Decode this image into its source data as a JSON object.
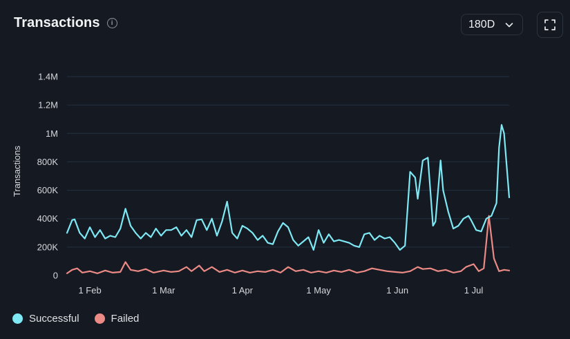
{
  "header": {
    "title": "Transactions",
    "info_icon": "info-icon",
    "range_label": "180D",
    "range_icon": "chevron-down-icon",
    "expand_icon": "expand-icon"
  },
  "colors": {
    "background": "#151a22",
    "grid": "#243040",
    "successful": "#7ee8f4",
    "failed": "#ec8a86"
  },
  "chart_data": {
    "type": "line",
    "title": "",
    "xlabel": "",
    "ylabel": "Transactions",
    "ylim": [
      0,
      1400000
    ],
    "yticks": [
      0,
      200000,
      400000,
      600000,
      800000,
      1000000,
      1200000,
      1400000
    ],
    "ytick_labels": [
      "0",
      "200K",
      "400K",
      "600K",
      "800K",
      "1M",
      "1.2M",
      "1.4M"
    ],
    "xrange": [
      "2024-01-23",
      "2024-07-15"
    ],
    "xticks": [
      "2024-02-01",
      "2024-03-01",
      "2024-04-01",
      "2024-05-01",
      "2024-06-01",
      "2024-07-01"
    ],
    "xtick_labels": [
      "1 Feb",
      "1 Mar",
      "1 Apr",
      "1 May",
      "1 Jun",
      "1 Jul"
    ],
    "grid": true,
    "legend_position": "bottom-left",
    "series": [
      {
        "name": "Successful",
        "color": "#7ee8f4",
        "points": [
          [
            "2024-01-23",
            300000
          ],
          [
            "2024-01-25",
            390000
          ],
          [
            "2024-01-26",
            395000
          ],
          [
            "2024-01-28",
            300000
          ],
          [
            "2024-01-30",
            260000
          ],
          [
            "2024-02-01",
            340000
          ],
          [
            "2024-02-03",
            270000
          ],
          [
            "2024-02-05",
            320000
          ],
          [
            "2024-02-07",
            260000
          ],
          [
            "2024-02-09",
            280000
          ],
          [
            "2024-02-11",
            270000
          ],
          [
            "2024-02-13",
            330000
          ],
          [
            "2024-02-15",
            470000
          ],
          [
            "2024-02-17",
            350000
          ],
          [
            "2024-02-19",
            300000
          ],
          [
            "2024-02-21",
            260000
          ],
          [
            "2024-02-23",
            300000
          ],
          [
            "2024-02-25",
            270000
          ],
          [
            "2024-02-27",
            330000
          ],
          [
            "2024-02-29",
            280000
          ],
          [
            "2024-03-02",
            320000
          ],
          [
            "2024-03-04",
            320000
          ],
          [
            "2024-03-06",
            340000
          ],
          [
            "2024-03-08",
            280000
          ],
          [
            "2024-03-10",
            320000
          ],
          [
            "2024-03-12",
            270000
          ],
          [
            "2024-03-14",
            390000
          ],
          [
            "2024-03-16",
            395000
          ],
          [
            "2024-03-18",
            320000
          ],
          [
            "2024-03-20",
            400000
          ],
          [
            "2024-03-22",
            280000
          ],
          [
            "2024-03-24",
            380000
          ],
          [
            "2024-03-26",
            520000
          ],
          [
            "2024-03-28",
            300000
          ],
          [
            "2024-03-30",
            260000
          ],
          [
            "2024-04-01",
            350000
          ],
          [
            "2024-04-03",
            330000
          ],
          [
            "2024-04-05",
            300000
          ],
          [
            "2024-04-07",
            250000
          ],
          [
            "2024-04-09",
            280000
          ],
          [
            "2024-04-11",
            230000
          ],
          [
            "2024-04-13",
            220000
          ],
          [
            "2024-04-15",
            310000
          ],
          [
            "2024-04-17",
            370000
          ],
          [
            "2024-04-19",
            340000
          ],
          [
            "2024-04-21",
            250000
          ],
          [
            "2024-04-23",
            210000
          ],
          [
            "2024-04-25",
            240000
          ],
          [
            "2024-04-27",
            270000
          ],
          [
            "2024-04-29",
            180000
          ],
          [
            "2024-05-01",
            320000
          ],
          [
            "2024-05-03",
            230000
          ],
          [
            "2024-05-05",
            290000
          ],
          [
            "2024-05-07",
            240000
          ],
          [
            "2024-05-09",
            250000
          ],
          [
            "2024-05-11",
            240000
          ],
          [
            "2024-05-13",
            230000
          ],
          [
            "2024-05-15",
            210000
          ],
          [
            "2024-05-17",
            200000
          ],
          [
            "2024-05-19",
            290000
          ],
          [
            "2024-05-21",
            300000
          ],
          [
            "2024-05-23",
            250000
          ],
          [
            "2024-05-25",
            280000
          ],
          [
            "2024-05-27",
            260000
          ],
          [
            "2024-05-29",
            270000
          ],
          [
            "2024-05-31",
            230000
          ],
          [
            "2024-06-02",
            180000
          ],
          [
            "2024-06-04",
            210000
          ],
          [
            "2024-06-06",
            730000
          ],
          [
            "2024-06-08",
            690000
          ],
          [
            "2024-06-09",
            540000
          ],
          [
            "2024-06-11",
            810000
          ],
          [
            "2024-06-13",
            830000
          ],
          [
            "2024-06-15",
            350000
          ],
          [
            "2024-06-16",
            380000
          ],
          [
            "2024-06-18",
            810000
          ],
          [
            "2024-06-19",
            600000
          ],
          [
            "2024-06-21",
            450000
          ],
          [
            "2024-06-23",
            330000
          ],
          [
            "2024-06-25",
            350000
          ],
          [
            "2024-06-27",
            400000
          ],
          [
            "2024-06-29",
            420000
          ],
          [
            "2024-06-30",
            390000
          ],
          [
            "2024-07-02",
            320000
          ],
          [
            "2024-07-04",
            310000
          ],
          [
            "2024-07-06",
            400000
          ],
          [
            "2024-07-08",
            420000
          ],
          [
            "2024-07-10",
            510000
          ],
          [
            "2024-07-11",
            900000
          ],
          [
            "2024-07-12",
            1060000
          ],
          [
            "2024-07-13",
            1000000
          ],
          [
            "2024-07-15",
            550000
          ]
        ]
      },
      {
        "name": "Failed",
        "color": "#ec8a86",
        "points": [
          [
            "2024-01-23",
            15000
          ],
          [
            "2024-01-25",
            40000
          ],
          [
            "2024-01-27",
            50000
          ],
          [
            "2024-01-29",
            20000
          ],
          [
            "2024-02-01",
            30000
          ],
          [
            "2024-02-04",
            15000
          ],
          [
            "2024-02-07",
            35000
          ],
          [
            "2024-02-10",
            20000
          ],
          [
            "2024-02-13",
            25000
          ],
          [
            "2024-02-15",
            95000
          ],
          [
            "2024-02-17",
            40000
          ],
          [
            "2024-02-20",
            30000
          ],
          [
            "2024-02-23",
            45000
          ],
          [
            "2024-02-26",
            20000
          ],
          [
            "2024-03-01",
            35000
          ],
          [
            "2024-03-04",
            25000
          ],
          [
            "2024-03-07",
            30000
          ],
          [
            "2024-03-10",
            60000
          ],
          [
            "2024-03-12",
            30000
          ],
          [
            "2024-03-15",
            70000
          ],
          [
            "2024-03-17",
            30000
          ],
          [
            "2024-03-20",
            60000
          ],
          [
            "2024-03-23",
            25000
          ],
          [
            "2024-03-26",
            40000
          ],
          [
            "2024-03-29",
            20000
          ],
          [
            "2024-04-01",
            35000
          ],
          [
            "2024-04-04",
            20000
          ],
          [
            "2024-04-07",
            30000
          ],
          [
            "2024-04-10",
            25000
          ],
          [
            "2024-04-13",
            40000
          ],
          [
            "2024-04-16",
            20000
          ],
          [
            "2024-04-19",
            60000
          ],
          [
            "2024-04-22",
            30000
          ],
          [
            "2024-04-25",
            40000
          ],
          [
            "2024-04-28",
            20000
          ],
          [
            "2024-05-01",
            30000
          ],
          [
            "2024-05-04",
            20000
          ],
          [
            "2024-05-07",
            35000
          ],
          [
            "2024-05-10",
            25000
          ],
          [
            "2024-05-13",
            40000
          ],
          [
            "2024-05-16",
            20000
          ],
          [
            "2024-05-19",
            30000
          ],
          [
            "2024-05-22",
            50000
          ],
          [
            "2024-05-25",
            40000
          ],
          [
            "2024-05-28",
            30000
          ],
          [
            "2024-05-31",
            25000
          ],
          [
            "2024-06-03",
            20000
          ],
          [
            "2024-06-06",
            30000
          ],
          [
            "2024-06-09",
            60000
          ],
          [
            "2024-06-11",
            45000
          ],
          [
            "2024-06-14",
            50000
          ],
          [
            "2024-06-17",
            30000
          ],
          [
            "2024-06-20",
            40000
          ],
          [
            "2024-06-23",
            20000
          ],
          [
            "2024-06-26",
            30000
          ],
          [
            "2024-06-28",
            60000
          ],
          [
            "2024-07-01",
            80000
          ],
          [
            "2024-07-03",
            30000
          ],
          [
            "2024-07-05",
            50000
          ],
          [
            "2024-07-07",
            420000
          ],
          [
            "2024-07-09",
            120000
          ],
          [
            "2024-07-11",
            30000
          ],
          [
            "2024-07-13",
            40000
          ],
          [
            "2024-07-15",
            35000
          ]
        ]
      }
    ]
  },
  "legend": [
    {
      "label": "Successful",
      "color": "#7ee8f4"
    },
    {
      "label": "Failed",
      "color": "#ec8a86"
    }
  ]
}
